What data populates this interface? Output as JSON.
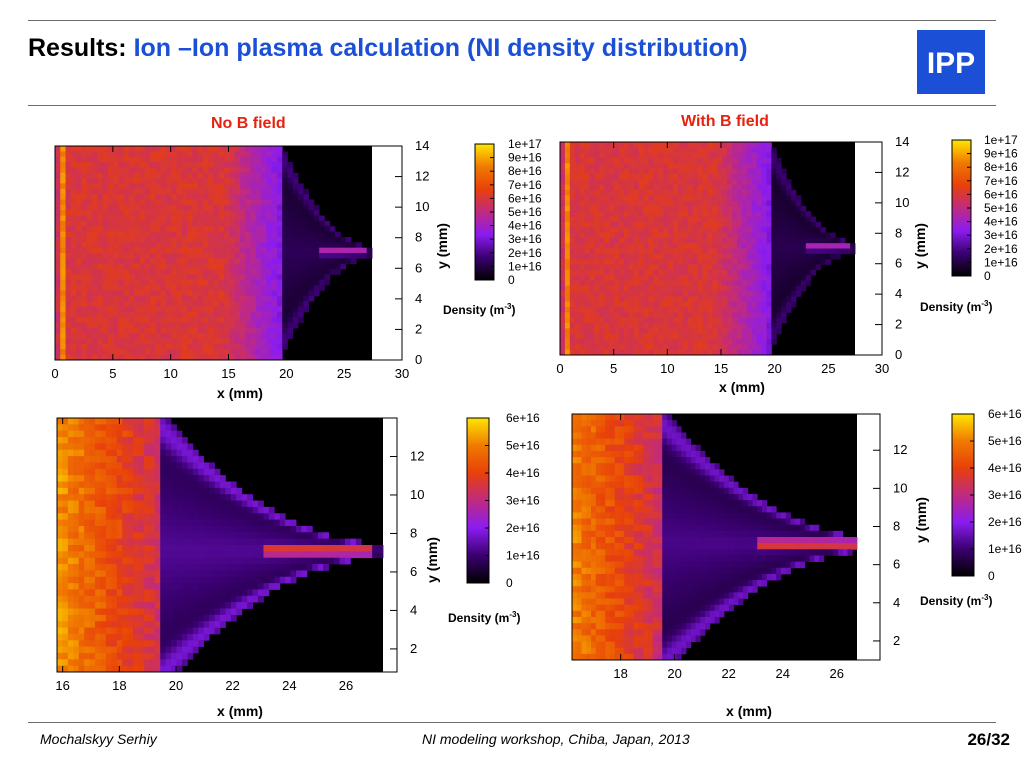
{
  "header": {
    "title_prefix": "Results: ",
    "title_highlight": "Ion –Ion plasma calculation (NI density distribution)",
    "logo_text": "IPP"
  },
  "columns": {
    "left": "No B field",
    "right": "With B field"
  },
  "footer": {
    "author": "Mochalskyy Serhiy",
    "event": "NI modeling workshop,  Chiba, Japan, 2013",
    "page": "26/32"
  },
  "colors": {
    "accent": "#1a4fd6",
    "column_title": "#e8220e",
    "colormap": [
      "#000000",
      "#3a0070",
      "#8a1cf0",
      "#c02a80",
      "#e8400a",
      "#f07a00",
      "#ffe600"
    ]
  },
  "chart_data": [
    {
      "type": "heatmap",
      "panel": "no-b-full",
      "xlabel": "x (mm)",
      "ylabel": "y (mm)",
      "xlim": [
        0,
        30
      ],
      "ylim": [
        0,
        14
      ],
      "xticks": [
        0,
        5,
        10,
        15,
        20,
        25,
        30
      ],
      "yticks": [
        0,
        2,
        4,
        6,
        8,
        10,
        12,
        14
      ],
      "colorbar": {
        "label": "Density (m",
        "label_sup": "-3",
        "label_end": ")",
        "min": 0,
        "max": 1e+17,
        "ticks": [
          "1e+17",
          "9e+16",
          "8e+16",
          "7e+16",
          "6e+16",
          "5e+16",
          "4e+16",
          "3e+16",
          "2e+16",
          "1e+16",
          "0"
        ]
      }
    },
    {
      "type": "heatmap",
      "panel": "with-b-full",
      "xlabel": "x (mm)",
      "ylabel": "y (mm)",
      "xlim": [
        0,
        30
      ],
      "ylim": [
        0,
        14
      ],
      "xticks": [
        0,
        5,
        10,
        15,
        20,
        25,
        30
      ],
      "yticks": [
        0,
        2,
        4,
        6,
        8,
        10,
        12,
        14
      ],
      "colorbar": {
        "label": "Density (m",
        "label_sup": "-3",
        "label_end": ")",
        "min": 0,
        "max": 1e+17,
        "ticks": [
          "1e+17",
          "9e+16",
          "8e+16",
          "7e+16",
          "6e+16",
          "5e+16",
          "4e+16",
          "3e+16",
          "2e+16",
          "1e+16",
          "0"
        ]
      }
    },
    {
      "type": "heatmap",
      "panel": "no-b-zoom",
      "xlabel": "x (mm)",
      "ylabel": "y (mm)",
      "xlim": [
        15.8,
        27.8
      ],
      "ylim": [
        0.8,
        14
      ],
      "xticks": [
        16,
        18,
        20,
        22,
        24,
        26
      ],
      "yticks": [
        2,
        4,
        6,
        8,
        10,
        12
      ],
      "colorbar": {
        "label": "Density (m",
        "label_sup": "-3",
        "label_end": ")",
        "min": 0,
        "max": 6e+16,
        "ticks": [
          "6e+16",
          "5e+16",
          "4e+16",
          "3e+16",
          "2e+16",
          "1e+16",
          "0"
        ]
      }
    },
    {
      "type": "heatmap",
      "panel": "with-b-zoom",
      "xlabel": "x (mm)",
      "ylabel": "y (mm)",
      "xlim": [
        16.2,
        27.6
      ],
      "ylim": [
        1,
        13.9
      ],
      "xticks": [
        18,
        20,
        22,
        24,
        26
      ],
      "yticks": [
        2,
        4,
        6,
        8,
        10,
        12
      ],
      "colorbar": {
        "label": "Density (m",
        "label_sup": "-3",
        "label_end": ")",
        "min": 0,
        "max": 6e+16,
        "ticks": [
          "6e+16",
          "5e+16",
          "4e+16",
          "3e+16",
          "2e+16",
          "1e+16",
          "0"
        ]
      }
    }
  ]
}
